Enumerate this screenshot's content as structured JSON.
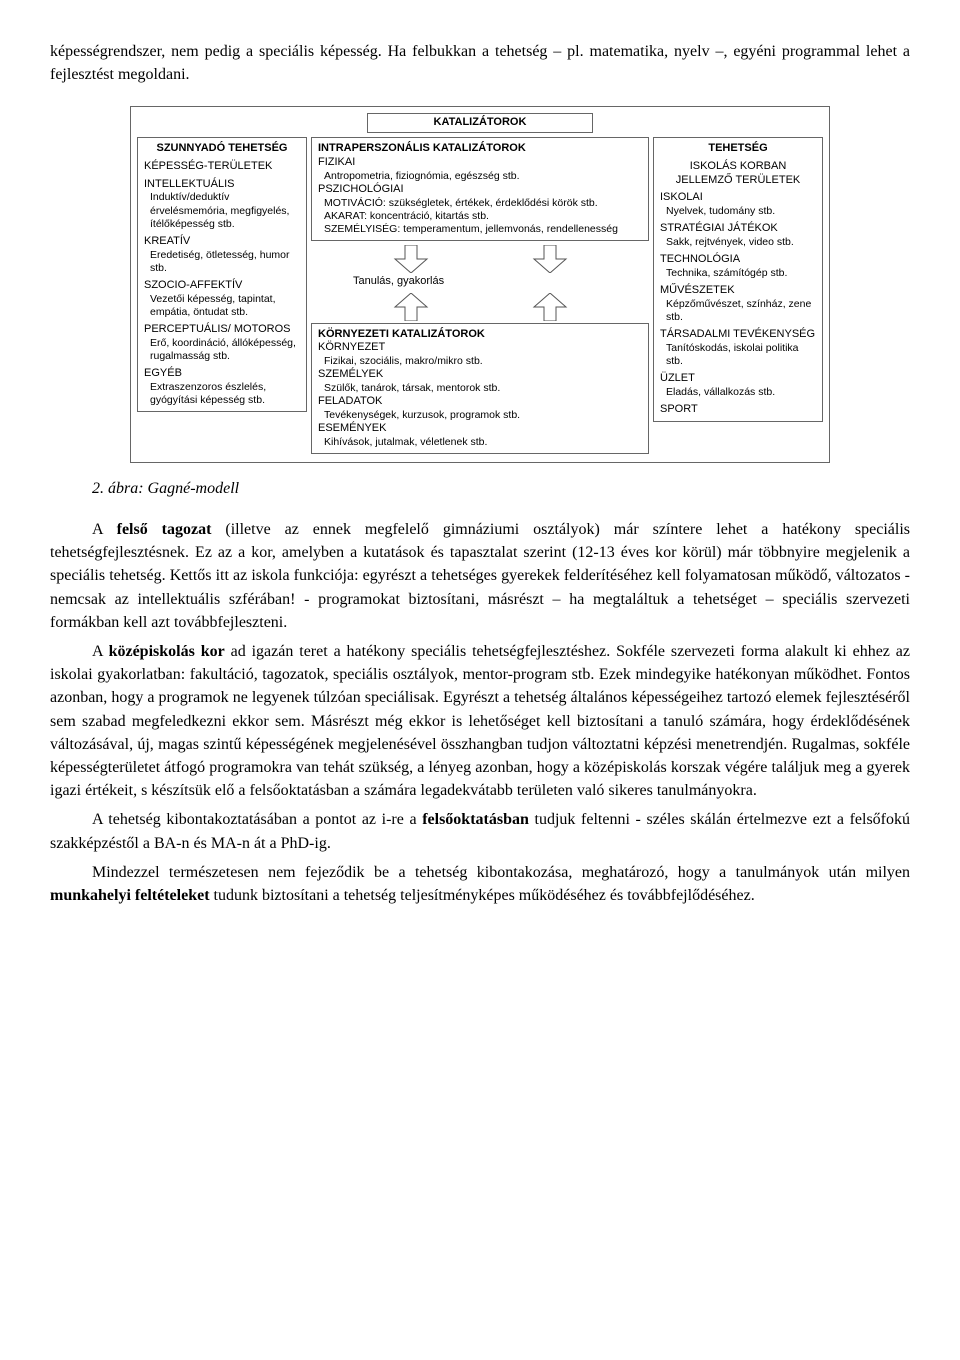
{
  "intro_p1": "képességrendszer, nem pedig a speciális képesség. Ha felbukkan a tehetség – pl. matematika, nyelv –, egyéni programmal lehet a fejlesztést megoldani.",
  "caption": "2. ábra: Gagné-modell",
  "body_p1_prefix": "A ",
  "body_p1_bold": "felső tagozat",
  "body_p1_rest": " (illetve az ennek megfelelő gimnáziumi osztályok) már színtere lehet a hatékony speciális tehetségfejlesztésnek. Ez az a kor, amelyben a kutatások és tapasztalat szerint (12-13 éves kor körül) már többnyire megjelenik a speciális tehetség. Kettős itt az iskola funkciója: egyrészt a tehetséges gyerekek felderítéséhez kell folyamatosan működő, változatos - nemcsak az intellektuális szférában! - programokat biztosítani, másrészt – ha megtaláltuk a tehetséget – speciális szervezeti formákban kell azt továbbfejleszteni.",
  "body_p2_prefix": "A ",
  "body_p2_bold": "középiskolás kor",
  "body_p2_rest": " ad igazán teret a hatékony speciális tehetségfejlesztéshez. Sokféle szervezeti forma alakult ki ehhez az iskolai gyakorlatban: fakultáció, tagozatok, speciális osztályok, mentor-program stb. Ezek mindegyike hatékonyan működhet. Fontos azonban, hogy a programok ne legyenek túlzóan speciálisak. Egyrészt a tehetség általános képességeihez tartozó elemek fejlesztéséről sem szabad megfeledkezni ekkor sem. Másrészt még ekkor is lehetőséget kell biztosítani a tanuló számára, hogy érdeklődésének változásával, új, magas szintű képességének megjelenésével összhangban tudjon változtatni képzési menetrendjén. Rugalmas, sokféle képességterületet átfogó programokra van tehát szükség, a lényeg azonban, hogy a középiskolás korszak végére találjuk meg a gyerek igazi értékeit, s készítsük elő a felsőoktatásban a számára legadekvátabb területen való sikeres tanulmányokra.",
  "body_p3_prefix": "A tehetség kibontakoztatásában a pontot az i-re a ",
  "body_p3_bold": "felsőoktatásban",
  "body_p3_rest": " tudjuk feltenni - széles skálán értelmezve ezt a felsőfokú szakképzéstől a BA-n és MA-n át a PhD-ig.",
  "body_p4_prefix": "Mindezzel természetesen nem fejeződik be a tehetség kibontakozása, meghatározó, hogy a tanulmányok után milyen ",
  "body_p4_bold": "munkahelyi feltételeket",
  "body_p4_rest": " tudunk biztosítani a tehetség teljesítményképes működéséhez és továbbfejlődéséhez.",
  "diagram": {
    "top_title": "KATALIZÁTOROK",
    "left": {
      "title": "SZUNNYADÓ TEHETSÉG",
      "sub": "KÉPESSÉG-TERÜLETEK",
      "cats": [
        {
          "t": "INTELLEKTUÁLIS",
          "d": "Induktív/deduktív érvelésmemória, megfigyelés, ítélőképesség stb."
        },
        {
          "t": "KREATÍV",
          "d": "Eredetiség, ötletesség, humor stb."
        },
        {
          "t": "SZOCIO-AFFEKTÍV",
          "d": "Vezetői képesség, tapintat, empátia, öntudat stb."
        },
        {
          "t": "PERCEPTUÁLIS/ MOTOROS",
          "d": "Erő, koordináció, állóképesség, rugalmasság stb."
        },
        {
          "t": "EGYÉB",
          "d": "Extraszenzoros észlelés, gyógyítási képesség stb."
        }
      ]
    },
    "center_top": {
      "title": "INTRAPERSZONÁLIS KATALIZÁTOROK",
      "rows": [
        {
          "t": "FIZIKAI",
          "d": "Antropometria, fiziognómia, egészség stb."
        },
        {
          "t": "PSZICHOLÓGIAI",
          "d": ""
        },
        {
          "t": "",
          "d": "MOTIVÁCIÓ: szükségletek, értékek, érdeklődési körök stb."
        },
        {
          "t": "",
          "d": "AKARAT: koncentráció, kitartás stb."
        },
        {
          "t": "",
          "d": "SZEMÉLYISÉG: temperamentum, jellemvonás, rendellenesség"
        }
      ]
    },
    "process": "Tanulás, gyakorlás",
    "center_bottom": {
      "title": "KÖRNYEZETI KATALIZÁTOROK",
      "rows": [
        {
          "t": "KÖRNYEZET",
          "d": "Fizikai, szociális, makro/mikro stb."
        },
        {
          "t": "SZEMÉLYEK",
          "d": "Szülők, tanárok, társak, mentorok stb."
        },
        {
          "t": "FELADATOK",
          "d": "Tevékenységek, kurzusok, programok stb."
        },
        {
          "t": "ESEMÉNYEK",
          "d": "Kihívások, jutalmak, véletlenek stb."
        }
      ]
    },
    "right": {
      "title": "TEHETSÉG",
      "sub": "ISKOLÁS KORBAN JELLEMZŐ TERÜLETEK",
      "cats": [
        {
          "t": "ISKOLAI",
          "d": "Nyelvek, tudomány stb."
        },
        {
          "t": "STRATÉGIAI JÁTÉKOK",
          "d": "Sakk, rejtvények, video stb."
        },
        {
          "t": "TECHNOLÓGIA",
          "d": "Technika, számítógép stb."
        },
        {
          "t": "MŰVÉSZETEK",
          "d": "Képzőművészet, színház, zene stb."
        },
        {
          "t": "TÁRSADALMI TEVÉKENYSÉG",
          "d": "Tanítóskodás, iskolai politika stb."
        },
        {
          "t": "ÜZLET",
          "d": "Eladás, vállalkozás stb."
        },
        {
          "t": "SPORT",
          "d": ""
        }
      ]
    }
  }
}
